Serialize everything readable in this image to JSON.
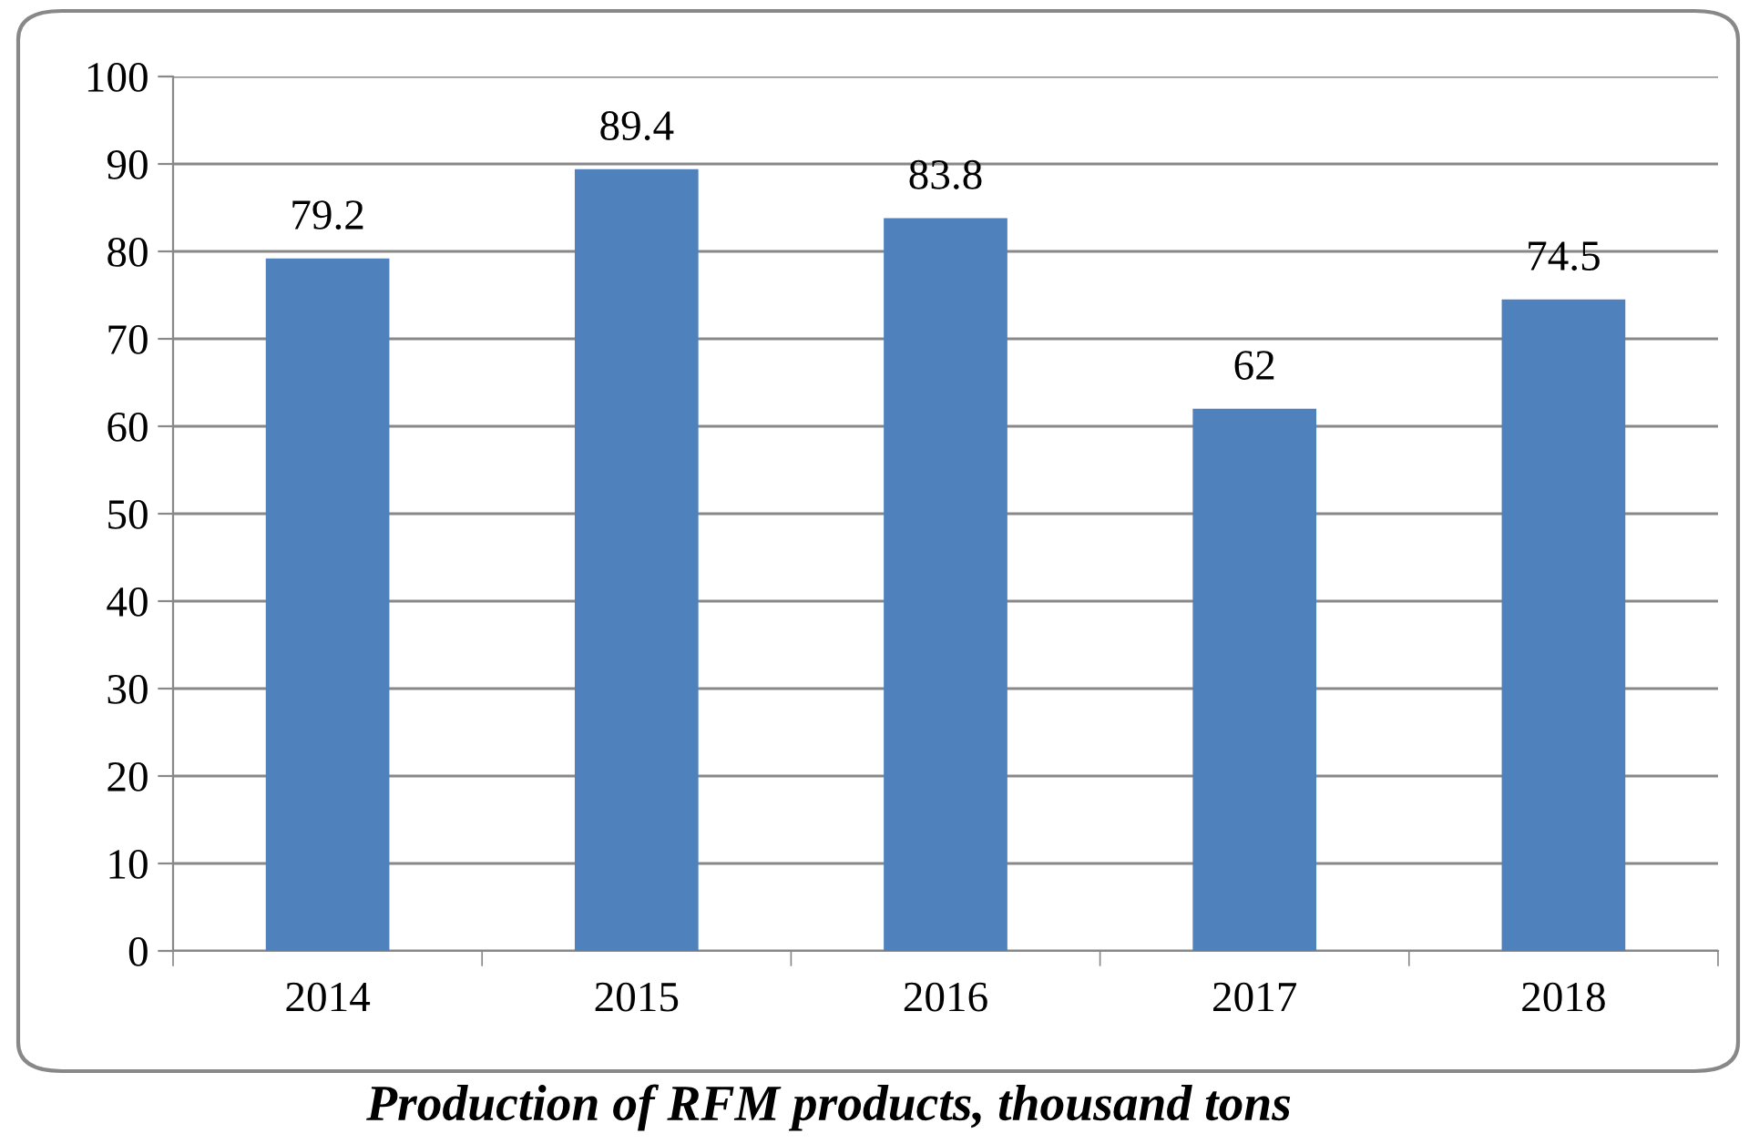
{
  "chart_data": {
    "type": "bar",
    "categories": [
      "2014",
      "2015",
      "2016",
      "2017",
      "2018"
    ],
    "values": [
      79.2,
      89.4,
      83.8,
      62,
      74.5
    ],
    "color": "#4f81bd",
    "ylim": [
      0,
      100
    ],
    "yticks": [
      0,
      10,
      20,
      30,
      40,
      50,
      60,
      70,
      80,
      90,
      100
    ],
    "grid": "y",
    "data_labels": true,
    "annotations": [
      "Production of RFM products, thousand tons"
    ]
  }
}
